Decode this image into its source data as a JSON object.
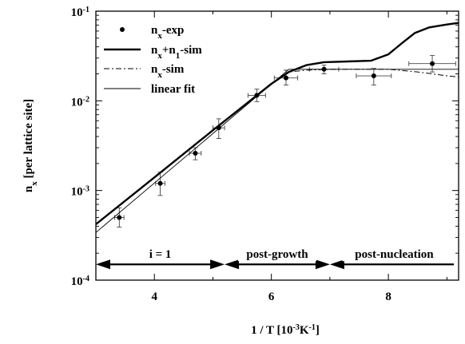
{
  "chart_data": {
    "type": "scatter",
    "xlabel": "1 / T [10",
    "xlabel_exp": "-3",
    "xlabel_unit": "K",
    "xlabel_unit_exp": "-1",
    "xlabel_close": "]",
    "ylabel_main": "n",
    "ylabel_sub": "x",
    "ylabel_rest": " [per lattice site]",
    "xlim": [
      3.0,
      9.2
    ],
    "ylim": [
      0.0001,
      0.1
    ],
    "y_scale": "log",
    "x_ticks": [
      {
        "value": 4,
        "label": "4"
      },
      {
        "value": 6,
        "label": "6"
      },
      {
        "value": 8,
        "label": "8"
      }
    ],
    "y_ticks": [
      {
        "value": 0.1,
        "base": "10",
        "exp": "-1"
      },
      {
        "value": 0.01,
        "base": "10",
        "exp": "-2"
      },
      {
        "value": 0.001,
        "base": "10",
        "exp": "-3"
      },
      {
        "value": 0.0001,
        "base": "10",
        "exp": "-4"
      }
    ],
    "legend": [
      {
        "main": "n",
        "sub": "x",
        "rest": "-exp",
        "style": "dot"
      },
      {
        "main": "n",
        "sub": "x",
        "rest": "+n",
        "sub2": "1",
        "rest2": "-sim",
        "style": "thick"
      },
      {
        "main": "n",
        "sub": "x",
        "rest": "-sim",
        "style": "dashdot"
      },
      {
        "main": "linear fit",
        "style": "thin"
      }
    ],
    "series": [
      {
        "name": "nx-exp",
        "points": [
          {
            "x": 3.4,
            "y": 0.0005,
            "xerr": 0.08,
            "ylo": 0.00039,
            "yhi": 0.00064
          },
          {
            "x": 4.1,
            "y": 0.0012,
            "xerr": 0.08,
            "ylo": 0.00088,
            "yhi": 0.0016
          },
          {
            "x": 4.7,
            "y": 0.0026,
            "xerr": 0.1,
            "ylo": 0.0022,
            "yhi": 0.003
          },
          {
            "x": 5.1,
            "y": 0.005,
            "xerr": 0.1,
            "ylo": 0.0038,
            "yhi": 0.0063
          },
          {
            "x": 5.75,
            "y": 0.0115,
            "xerr": 0.15,
            "ylo": 0.0098,
            "yhi": 0.0135
          },
          {
            "x": 6.25,
            "y": 0.018,
            "xerr": 0.2,
            "ylo": 0.015,
            "yhi": 0.022
          },
          {
            "x": 6.9,
            "y": 0.0225,
            "xerr": 0.25,
            "ylo": 0.02,
            "yhi": 0.025
          },
          {
            "x": 7.75,
            "y": 0.019,
            "xerr": 0.3,
            "ylo": 0.015,
            "yhi": 0.023
          },
          {
            "x": 8.75,
            "y": 0.026,
            "xerr": 0.4,
            "ylo": 0.021,
            "yhi": 0.032
          }
        ]
      },
      {
        "name": "nx+n1-sim",
        "points": [
          {
            "x": 3.0,
            "y": 0.00042
          },
          {
            "x": 4.0,
            "y": 0.0014
          },
          {
            "x": 5.0,
            "y": 0.0047
          },
          {
            "x": 6.0,
            "y": 0.0155
          },
          {
            "x": 6.3,
            "y": 0.021
          },
          {
            "x": 6.6,
            "y": 0.025
          },
          {
            "x": 6.9,
            "y": 0.027
          },
          {
            "x": 7.3,
            "y": 0.0275
          },
          {
            "x": 7.7,
            "y": 0.028
          },
          {
            "x": 8.0,
            "y": 0.033
          },
          {
            "x": 8.25,
            "y": 0.045
          },
          {
            "x": 8.45,
            "y": 0.057
          },
          {
            "x": 8.7,
            "y": 0.066
          },
          {
            "x": 9.0,
            "y": 0.071
          },
          {
            "x": 9.2,
            "y": 0.074
          }
        ]
      },
      {
        "name": "nx-sim",
        "points": [
          {
            "x": 3.0,
            "y": 0.00042
          },
          {
            "x": 4.0,
            "y": 0.0014
          },
          {
            "x": 5.0,
            "y": 0.0047
          },
          {
            "x": 6.0,
            "y": 0.0155
          },
          {
            "x": 6.3,
            "y": 0.021
          },
          {
            "x": 6.6,
            "y": 0.022
          },
          {
            "x": 7.0,
            "y": 0.0225
          },
          {
            "x": 7.5,
            "y": 0.0225
          },
          {
            "x": 8.0,
            "y": 0.0225
          },
          {
            "x": 8.5,
            "y": 0.021
          },
          {
            "x": 9.0,
            "y": 0.019
          },
          {
            "x": 9.2,
            "y": 0.0185
          }
        ]
      },
      {
        "name": "linear fit",
        "points": [
          {
            "x": 3.0,
            "y": 0.00034
          },
          {
            "x": 6.3,
            "y": 0.0225
          },
          {
            "x": 9.2,
            "y": 0.0225
          }
        ]
      }
    ],
    "regions": [
      {
        "label": "i = 1",
        "x_start": 3.0,
        "x_end": 5.2,
        "arrow_left": true,
        "arrow_right": true
      },
      {
        "label": "post-growth",
        "x_start": 5.2,
        "x_end": 7.0,
        "arrow_left": true,
        "arrow_right": true
      },
      {
        "label": "post-nucleation",
        "x_start": 7.0,
        "x_end": 9.2,
        "arrow_left": true,
        "arrow_right": false
      }
    ],
    "region_line_y": 0.00015
  }
}
